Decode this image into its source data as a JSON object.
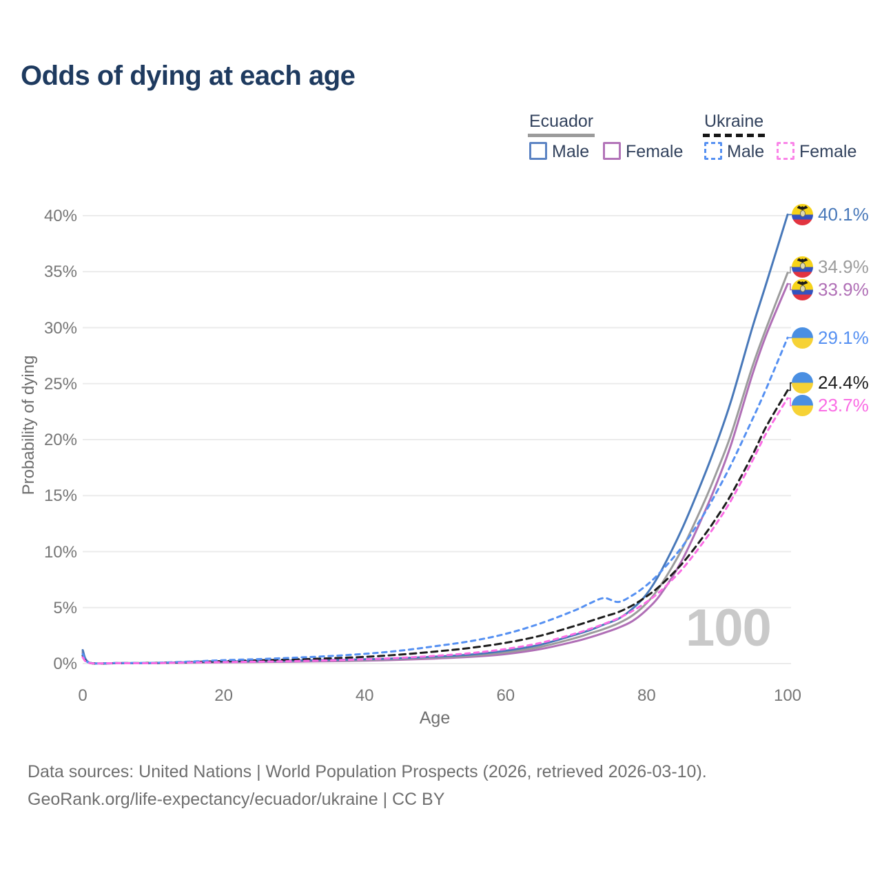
{
  "title": "Odds of dying at each age",
  "legend": {
    "groups": [
      {
        "country": "Ecuador",
        "line_style": "solid",
        "items": [
          {
            "label": "Male",
            "color": "#4878b9"
          },
          {
            "label": "Female",
            "color": "#b06fb6"
          }
        ]
      },
      {
        "country": "Ukraine",
        "line_style": "dashed",
        "items": [
          {
            "label": "Male",
            "color": "#5590f2"
          },
          {
            "label": "Female",
            "color": "#fa6ce4"
          }
        ]
      }
    ]
  },
  "watermark": "100",
  "footer": {
    "line1": "Data sources: United Nations | World Population Prospects (2026, retrieved 2026-03-10).",
    "line2": "GeoRank.org/life-expectancy/ecuador/ukraine | CC BY"
  },
  "chart_data": {
    "type": "line",
    "title": "Odds of dying at each age",
    "xlabel": "Age",
    "ylabel": "Probability of dying",
    "xlim": [
      0,
      100
    ],
    "ylim": [
      0,
      40
    ],
    "grid": "horizontal",
    "legend_position": "top-right",
    "x_ticks": [
      0,
      20,
      40,
      60,
      80,
      100
    ],
    "y_ticks": [
      {
        "value": 0,
        "label": "0%"
      },
      {
        "value": 5,
        "label": "5%"
      },
      {
        "value": 10,
        "label": "10%"
      },
      {
        "value": 15,
        "label": "15%"
      },
      {
        "value": 20,
        "label": "20%"
      },
      {
        "value": 25,
        "label": "25%"
      },
      {
        "value": 30,
        "label": "30%"
      },
      {
        "value": 35,
        "label": "35%"
      },
      {
        "value": 40,
        "label": "40%"
      }
    ],
    "x": [
      0,
      1,
      5,
      10,
      15,
      20,
      25,
      30,
      35,
      40,
      45,
      50,
      55,
      60,
      65,
      70,
      72,
      74,
      76,
      78,
      80,
      82,
      85,
      88,
      90,
      92,
      95,
      97,
      100
    ],
    "series": [
      {
        "name": "Ecuador Female",
        "country": "Ecuador",
        "sex": "Female",
        "color": "#b06fb6",
        "dash": false,
        "flag": "ecuador",
        "end_label": "33.9%",
        "values": [
          0.95,
          0.06,
          0.035,
          0.04,
          0.08,
          0.11,
          0.14,
          0.17,
          0.21,
          0.26,
          0.34,
          0.45,
          0.6,
          0.85,
          1.3,
          2.0,
          2.35,
          2.75,
          3.2,
          3.8,
          4.8,
          6.2,
          9.2,
          13.2,
          16.2,
          19.6,
          25.8,
          29.4,
          33.9
        ]
      },
      {
        "name": "Ecuador",
        "country": "Ecuador",
        "sex": "Both sexes",
        "color": "#9c9c9c",
        "dash": false,
        "flag": "ecuador",
        "end_label": "34.9%",
        "values": [
          1.05,
          0.065,
          0.04,
          0.045,
          0.1,
          0.15,
          0.19,
          0.23,
          0.27,
          0.32,
          0.41,
          0.54,
          0.7,
          1.0,
          1.5,
          2.3,
          2.7,
          3.1,
          3.6,
          4.3,
          5.4,
          7.0,
          10.2,
          14.2,
          17.2,
          20.5,
          26.5,
          30.0,
          34.9
        ]
      },
      {
        "name": "Ecuador Male",
        "country": "Ecuador",
        "sex": "Male",
        "color": "#4878b9",
        "dash": false,
        "flag": "ecuador",
        "end_label": "40.1%",
        "values": [
          1.2,
          0.07,
          0.04,
          0.05,
          0.12,
          0.18,
          0.23,
          0.27,
          0.32,
          0.38,
          0.48,
          0.62,
          0.8,
          1.15,
          1.7,
          2.6,
          3.0,
          3.5,
          4.0,
          4.9,
          6.2,
          8.2,
          12.0,
          16.5,
          19.8,
          23.5,
          30.0,
          34.0,
          40.1
        ]
      },
      {
        "name": "Ukraine",
        "country": "Ukraine",
        "sex": "Both sexes",
        "color": "#1c1c1c",
        "dash": true,
        "flag": "ukraine",
        "end_label": "24.4%",
        "values": [
          0.7,
          0.055,
          0.04,
          0.055,
          0.13,
          0.22,
          0.29,
          0.37,
          0.47,
          0.6,
          0.8,
          1.07,
          1.4,
          1.85,
          2.5,
          3.4,
          3.8,
          4.2,
          4.6,
          5.2,
          6.0,
          7.0,
          8.9,
          11.3,
          13.1,
          15.1,
          18.6,
          21.2,
          24.4
        ]
      },
      {
        "name": "Ukraine Male",
        "country": "Ukraine",
        "sex": "Male",
        "color": "#5590f2",
        "dash": true,
        "flag": "ukraine",
        "end_label": "29.1%",
        "values": [
          0.85,
          0.06,
          0.05,
          0.07,
          0.17,
          0.3,
          0.4,
          0.52,
          0.67,
          0.87,
          1.15,
          1.55,
          2.0,
          2.65,
          3.6,
          4.8,
          5.4,
          5.85,
          5.5,
          6.1,
          7.0,
          8.2,
          10.4,
          13.2,
          15.4,
          17.8,
          21.8,
          24.6,
          29.1
        ]
      },
      {
        "name": "Ukraine Female",
        "country": "Ukraine",
        "sex": "Female",
        "color": "#fa6ce4",
        "dash": true,
        "flag": "ukraine",
        "end_label": "23.7%",
        "values": [
          0.55,
          0.05,
          0.035,
          0.04,
          0.09,
          0.13,
          0.17,
          0.22,
          0.29,
          0.38,
          0.51,
          0.69,
          0.93,
          1.3,
          1.85,
          2.7,
          3.1,
          3.55,
          4.05,
          4.7,
          5.5,
          6.5,
          8.4,
          10.8,
          12.6,
          14.6,
          18.1,
          20.6,
          23.7
        ]
      }
    ]
  }
}
